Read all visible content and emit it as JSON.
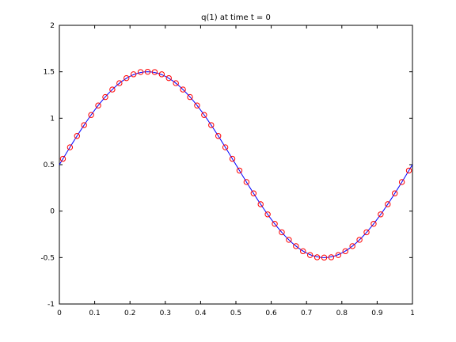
{
  "chart_data": {
    "type": "line",
    "title": "q(1)  at time t = 0",
    "xlabel": "",
    "ylabel": "",
    "xlim": [
      0,
      1
    ],
    "ylim": [
      -1,
      2
    ],
    "grid": false,
    "x_ticks": [
      "0",
      "0.1",
      "0.2",
      "0.3",
      "0.4",
      "0.5",
      "0.6",
      "0.7",
      "0.8",
      "0.9",
      "1"
    ],
    "y_ticks": [
      "-1",
      "-0.5",
      "0",
      "0.5",
      "1",
      "1.5",
      "2"
    ],
    "series": [
      {
        "style": "solid-line",
        "color": "#0000ff",
        "x": [
          0,
          0.05,
          0.1,
          0.15,
          0.2,
          0.25,
          0.3,
          0.35,
          0.4,
          0.45,
          0.5,
          0.55,
          0.6,
          0.65,
          0.7,
          0.75,
          0.8,
          0.85,
          0.9,
          0.95,
          1
        ],
        "y": [
          0.5,
          0.809,
          1.088,
          1.309,
          1.451,
          1.5,
          1.451,
          1.309,
          1.088,
          0.809,
          0.5,
          0.191,
          -0.088,
          -0.309,
          -0.451,
          -0.5,
          -0.451,
          -0.309,
          -0.088,
          0.191,
          0.5
        ]
      },
      {
        "style": "circle-markers",
        "color": "#ff0000",
        "x": [
          0.01,
          0.03,
          0.05,
          0.07,
          0.09,
          0.11,
          0.13,
          0.15,
          0.17,
          0.19,
          0.21,
          0.23,
          0.25,
          0.27,
          0.29,
          0.31,
          0.33,
          0.35,
          0.37,
          0.39,
          0.41,
          0.43,
          0.45,
          0.47,
          0.49,
          0.51,
          0.53,
          0.55,
          0.57,
          0.59,
          0.61,
          0.63,
          0.65,
          0.67,
          0.69,
          0.71,
          0.73,
          0.75,
          0.77,
          0.79,
          0.81,
          0.83,
          0.85,
          0.87,
          0.89,
          0.91,
          0.93,
          0.95,
          0.97,
          0.99
        ],
        "y": [
          0.563,
          0.687,
          0.809,
          0.926,
          1.035,
          1.137,
          1.228,
          1.309,
          1.377,
          1.432,
          1.473,
          1.497,
          1.5,
          1.497,
          1.473,
          1.432,
          1.377,
          1.309,
          1.228,
          1.137,
          1.035,
          0.926,
          0.809,
          0.687,
          0.563,
          0.437,
          0.313,
          0.191,
          0.074,
          -0.035,
          -0.137,
          -0.228,
          -0.309,
          -0.377,
          -0.432,
          -0.473,
          -0.497,
          -0.5,
          -0.497,
          -0.473,
          -0.432,
          -0.377,
          -0.309,
          -0.228,
          -0.137,
          -0.035,
          0.074,
          0.191,
          0.313,
          0.437
        ]
      }
    ]
  }
}
